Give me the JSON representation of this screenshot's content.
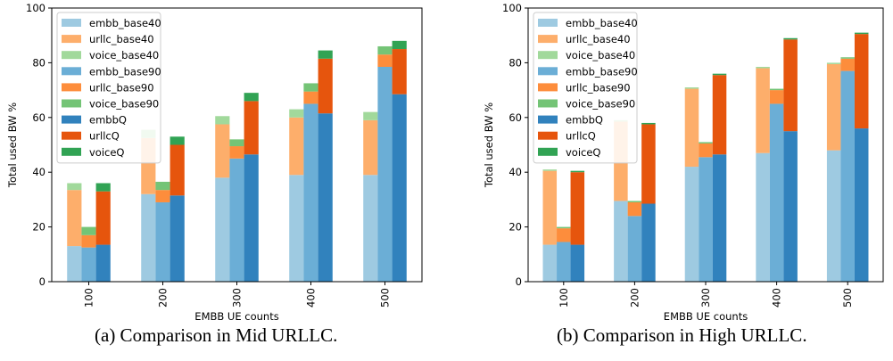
{
  "captions": [
    "(a) Comparison in Mid URLLC.",
    "(b) Comparison in High URLLC."
  ],
  "colors": {
    "embb_base40": "#9ecae1",
    "urllc_base40": "#fdae6b",
    "voice_base40": "#a1d99b",
    "embb_base90": "#6baed6",
    "urllc_base90": "#fd8d3c",
    "voice_base90": "#74c476",
    "embbQ": "#3182bd",
    "urllcQ": "#e6550d",
    "voiceQ": "#31a354"
  },
  "chart_data": [
    {
      "type": "bar",
      "stacked": true,
      "grouped": true,
      "title": "",
      "xlabel": "EMBB UE counts",
      "ylabel": "Total used BW %",
      "ylim": [
        0,
        100
      ],
      "yticks": [
        0,
        20,
        40,
        60,
        80,
        100
      ],
      "categories": [
        "100",
        "200",
        "300",
        "400",
        "500"
      ],
      "legend_position": "upper-left",
      "groups": [
        {
          "name": "base40",
          "segments": [
            {
              "name": "embb_base40",
              "values": [
                13,
                32,
                38,
                39,
                39
              ]
            },
            {
              "name": "urllc_base40",
              "values": [
                20.5,
                20.5,
                19.5,
                21,
                20
              ]
            },
            {
              "name": "voice_base40",
              "values": [
                2.5,
                3,
                3,
                3,
                3
              ]
            }
          ]
        },
        {
          "name": "base90",
          "segments": [
            {
              "name": "embb_base90",
              "values": [
                12.5,
                29,
                45,
                65,
                78.5
              ]
            },
            {
              "name": "urllc_base90",
              "values": [
                4.5,
                4.5,
                4.5,
                4.5,
                4.5
              ]
            },
            {
              "name": "voice_base90",
              "values": [
                3,
                3,
                2.5,
                3,
                3
              ]
            }
          ]
        },
        {
          "name": "Q",
          "segments": [
            {
              "name": "embbQ",
              "values": [
                13.5,
                31.5,
                46.5,
                61.5,
                68.5
              ]
            },
            {
              "name": "urllcQ",
              "values": [
                19.5,
                18.5,
                19.5,
                20,
                16.5
              ]
            },
            {
              "name": "voiceQ",
              "values": [
                3,
                3,
                3,
                3,
                3
              ]
            }
          ]
        }
      ]
    },
    {
      "type": "bar",
      "stacked": true,
      "grouped": true,
      "title": "",
      "xlabel": "EMBB UE counts",
      "ylabel": "Total used BW %",
      "ylim": [
        0,
        100
      ],
      "yticks": [
        0,
        20,
        40,
        60,
        80,
        100
      ],
      "categories": [
        "100",
        "200",
        "300",
        "400",
        "500"
      ],
      "legend_position": "upper-left",
      "groups": [
        {
          "name": "base40",
          "segments": [
            {
              "name": "embb_base40",
              "values": [
                13.5,
                29.5,
                42,
                47,
                48
              ]
            },
            {
              "name": "urllc_base40",
              "values": [
                27,
                29,
                28.5,
                31,
                31.5
              ]
            },
            {
              "name": "voice_base40",
              "values": [
                0.5,
                0.5,
                0.5,
                0.5,
                0.5
              ]
            }
          ]
        },
        {
          "name": "base90",
          "segments": [
            {
              "name": "embb_base90",
              "values": [
                14.5,
                24,
                45.5,
                65,
                77
              ]
            },
            {
              "name": "urllc_base90",
              "values": [
                5,
                5,
                5,
                5,
                4.5
              ]
            },
            {
              "name": "voice_base90",
              "values": [
                0.5,
                0.5,
                0.5,
                0.5,
                0.5
              ]
            }
          ]
        },
        {
          "name": "Q",
          "segments": [
            {
              "name": "embbQ",
              "values": [
                13.5,
                28.5,
                46.5,
                55,
                56
              ]
            },
            {
              "name": "urllcQ",
              "values": [
                26.5,
                29,
                29,
                33.5,
                34.5
              ]
            },
            {
              "name": "voiceQ",
              "values": [
                0.5,
                0.5,
                0.5,
                0.5,
                0.5
              ]
            }
          ]
        }
      ]
    }
  ]
}
